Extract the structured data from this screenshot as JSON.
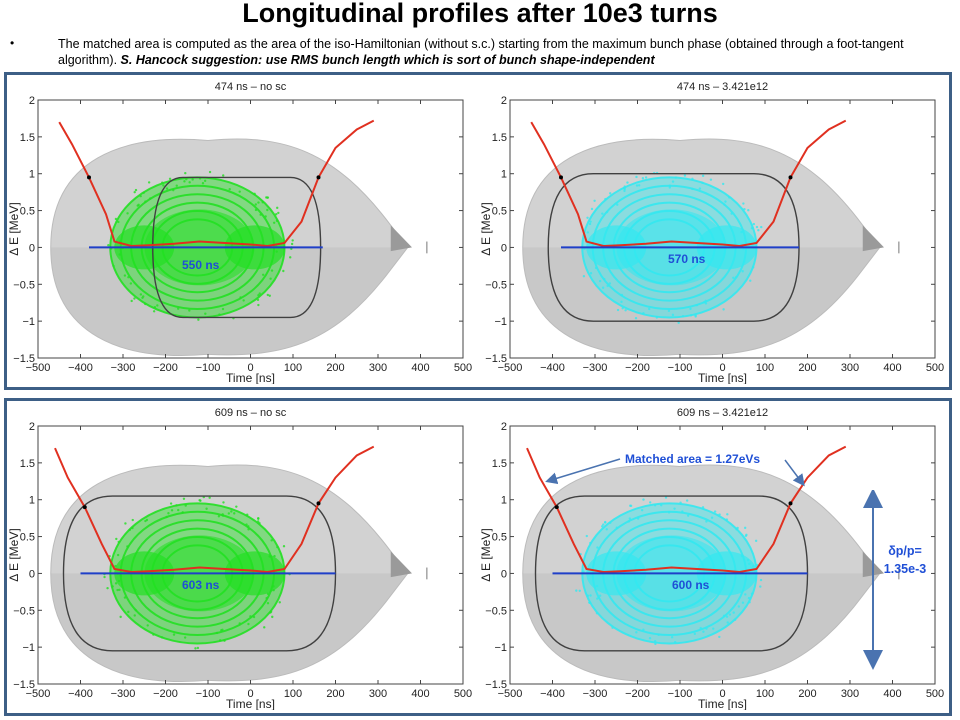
{
  "header": {
    "title": "Longitudinal profiles after 10e3 turns",
    "bullet_dot": "•",
    "bullet_text": "The matched area is computed as the area of the iso-Hamiltonian (without s.c.) starting from the maximum bunch phase (obtained through a foot-tangent algorithm).",
    "bullet_emphasis": "S. Hancock suggestion: use RMS bunch length which is sort of bunch shape-independent"
  },
  "axes": {
    "xlabel": "Time [ns]",
    "ylabel": "Δ E [MeV]",
    "xticks": [
      "−500",
      "−400",
      "−300",
      "−200",
      "−100",
      "0",
      "100",
      "200",
      "300",
      "400",
      "500"
    ],
    "yticks": [
      "2",
      "1.5",
      "1",
      "0.5",
      "0",
      "−0.5",
      "−1",
      "−1.5"
    ]
  },
  "panels": [
    {
      "title": "474 ns – no sc",
      "label": "550 ns",
      "particle_color": "#22e022"
    },
    {
      "title": "474 ns – 3.421e12",
      "label": "570 ns",
      "particle_color": "#33e8f0"
    },
    {
      "title": "609 ns – no sc",
      "label": "603 ns",
      "particle_color": "#22e022"
    },
    {
      "title": "609 ns – 3.421e12",
      "label": "600 ns",
      "particle_color": "#33e8f0"
    }
  ],
  "annotations": {
    "matched_area": "Matched area = 1.27eVs",
    "dpp_line1": "δp/p=",
    "dpp_line2": "1.35e-3"
  },
  "colors": {
    "frame": "#3d5f86",
    "annotation_blue": "#1f4fd6",
    "rms_line": "#1f3fc8",
    "profile_red": "#e03020",
    "separatrix": "#404040"
  },
  "chart_data": [
    {
      "type": "scatter",
      "title": "474 ns – no sc",
      "xlabel": "Time [ns]",
      "ylabel": "Δ E [MeV]",
      "xlim": [
        -500,
        500
      ],
      "ylim": [
        -1.5,
        2
      ],
      "annotation": "550 ns",
      "rms_bunch_length_line": {
        "x": [
          -380,
          170
        ],
        "y": [
          0,
          0
        ]
      },
      "matched_contour": {
        "t_min": -230,
        "t_max": 165,
        "dE_max": 0.95
      },
      "profile": {
        "x": [
          -450,
          -420,
          -380,
          -340,
          -320,
          -280,
          -240,
          -180,
          -120,
          -60,
          0,
          40,
          80,
          120,
          160,
          200,
          250,
          290
        ],
        "y": [
          1.7,
          1.4,
          0.95,
          0.45,
          0.08,
          0.02,
          0.03,
          0.05,
          0.08,
          0.06,
          0.04,
          0.02,
          0.06,
          0.35,
          0.95,
          1.35,
          1.6,
          1.72
        ]
      }
    },
    {
      "type": "scatter",
      "title": "474 ns – 3.421e12",
      "xlabel": "Time [ns]",
      "ylabel": "Δ E [MeV]",
      "xlim": [
        -500,
        500
      ],
      "ylim": [
        -1.5,
        2
      ],
      "annotation": "570 ns",
      "rms_bunch_length_line": {
        "x": [
          -380,
          180
        ],
        "y": [
          0,
          0
        ]
      },
      "matched_contour": {
        "t_min": -410,
        "t_max": 180,
        "dE_max": 1.0
      },
      "profile": {
        "x": [
          -450,
          -420,
          -380,
          -340,
          -320,
          -280,
          -240,
          -180,
          -120,
          -60,
          0,
          40,
          80,
          120,
          160,
          200,
          250,
          290
        ],
        "y": [
          1.7,
          1.4,
          0.95,
          0.45,
          0.08,
          0.02,
          0.03,
          0.05,
          0.08,
          0.06,
          0.04,
          0.02,
          0.06,
          0.35,
          0.95,
          1.35,
          1.6,
          1.72
        ]
      }
    },
    {
      "type": "scatter",
      "title": "609 ns – no sc",
      "xlabel": "Time [ns]",
      "ylabel": "Δ E [MeV]",
      "xlim": [
        -500,
        500
      ],
      "ylim": [
        -1.5,
        2
      ],
      "annotation": "603 ns",
      "rms_bunch_length_line": {
        "x": [
          -400,
          200
        ],
        "y": [
          0,
          0
        ]
      },
      "matched_contour": {
        "t_min": -440,
        "t_max": 200,
        "dE_max": 1.05
      },
      "profile": {
        "x": [
          -460,
          -430,
          -390,
          -350,
          -320,
          -280,
          -240,
          -180,
          -120,
          -60,
          0,
          40,
          80,
          120,
          160,
          200,
          250,
          290
        ],
        "y": [
          1.7,
          1.3,
          0.9,
          0.4,
          0.06,
          0.02,
          0.03,
          0.05,
          0.08,
          0.06,
          0.04,
          0.02,
          0.06,
          0.4,
          0.95,
          1.3,
          1.6,
          1.72
        ]
      }
    },
    {
      "type": "scatter",
      "title": "609 ns – 3.421e12",
      "xlabel": "Time [ns]",
      "ylabel": "Δ E [MeV]",
      "xlim": [
        -500,
        500
      ],
      "ylim": [
        -1.5,
        2
      ],
      "annotation": "600 ns",
      "rms_bunch_length_line": {
        "x": [
          -400,
          200
        ],
        "y": [
          0,
          0
        ]
      },
      "matched_contour": {
        "t_min": -440,
        "t_max": 200,
        "dE_max": 1.05
      },
      "profile": {
        "x": [
          -460,
          -430,
          -390,
          -350,
          -320,
          -280,
          -240,
          -180,
          -120,
          -60,
          0,
          40,
          80,
          120,
          160,
          200,
          250,
          290
        ],
        "y": [
          1.7,
          1.3,
          0.9,
          0.4,
          0.06,
          0.02,
          0.03,
          0.05,
          0.08,
          0.06,
          0.04,
          0.02,
          0.06,
          0.4,
          0.95,
          1.3,
          1.6,
          1.72
        ]
      }
    }
  ]
}
